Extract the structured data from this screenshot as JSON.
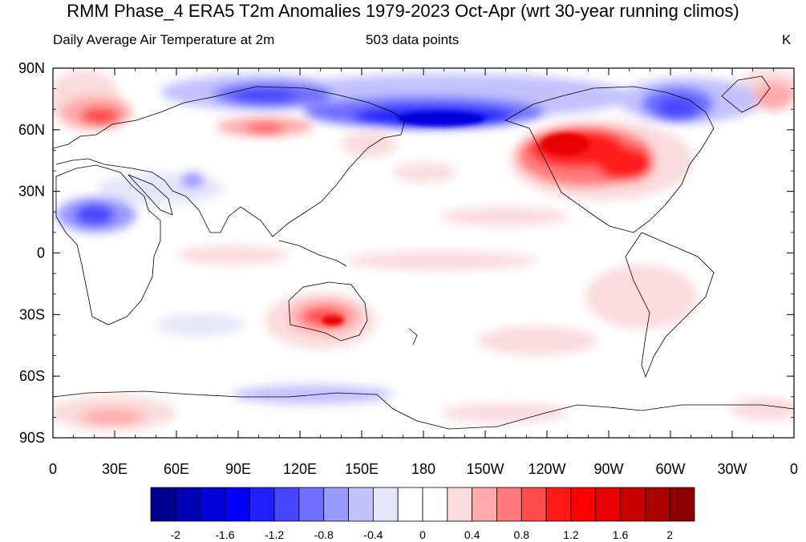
{
  "title": "RMM Phase_4 ERA5 T2m Anomalies 1979-2023 Oct-Apr (wrt 30-year running climos)",
  "subtitle_left": "Daily Average Air Temperature at 2m",
  "subtitle_center": "503 data points",
  "units": "K",
  "map": {
    "projection": "cylindrical-equidistant",
    "center_longitude": 180,
    "lat_labels": [
      "90N",
      "60N",
      "30N",
      "0",
      "30S",
      "60S",
      "90S"
    ],
    "lon_labels": [
      "0",
      "30E",
      "60E",
      "90E",
      "120E",
      "150E",
      "180",
      "150W",
      "120W",
      "90W",
      "60W",
      "30W",
      "0"
    ],
    "features": [
      {
        "label": "cold",
        "lon": 112,
        "lat": 76,
        "value": -1.2
      },
      {
        "label": "cold",
        "lon": 190,
        "lat": 65,
        "value": -1.8
      },
      {
        "label": "cold",
        "lon": 300,
        "lat": 68,
        "value": -1.4
      },
      {
        "label": "cold",
        "lon": 20,
        "lat": 18,
        "value": -1.2
      },
      {
        "label": "cold",
        "lon": 130,
        "lat": -68,
        "value": -0.6
      },
      {
        "label": "warm",
        "lon": 260,
        "lat": 48,
        "value": 1.6
      },
      {
        "label": "warm",
        "lon": 135,
        "lat": -28,
        "value": 1.2
      },
      {
        "label": "warm",
        "lon": 25,
        "lat": 62,
        "value": 1.0
      },
      {
        "label": "warm",
        "lon": 90,
        "lat": 58,
        "value": 0.8
      },
      {
        "label": "warm",
        "lon": 355,
        "lat": 70,
        "value": 1.0
      },
      {
        "label": "warm",
        "lon": 25,
        "lat": -78,
        "value": 0.8
      }
    ]
  },
  "colorbar": {
    "labels": [
      "-2",
      "-1.6",
      "-1.2",
      "-0.8",
      "-0.4",
      "0",
      "0.4",
      "0.8",
      "1.2",
      "1.6",
      "2"
    ],
    "colors": [
      "#00008f",
      "#0000b4",
      "#0000d8",
      "#0000ff",
      "#2020ff",
      "#4646ff",
      "#7070ff",
      "#9a9aff",
      "#c2c2ff",
      "#e6e6fa",
      "#ffffff",
      "#ffffff",
      "#fadcdc",
      "#ffaaaa",
      "#ff7a7a",
      "#ff4c4c",
      "#ff1a1a",
      "#ff0000",
      "#e60000",
      "#c80000",
      "#aa0000",
      "#8b0000"
    ]
  }
}
